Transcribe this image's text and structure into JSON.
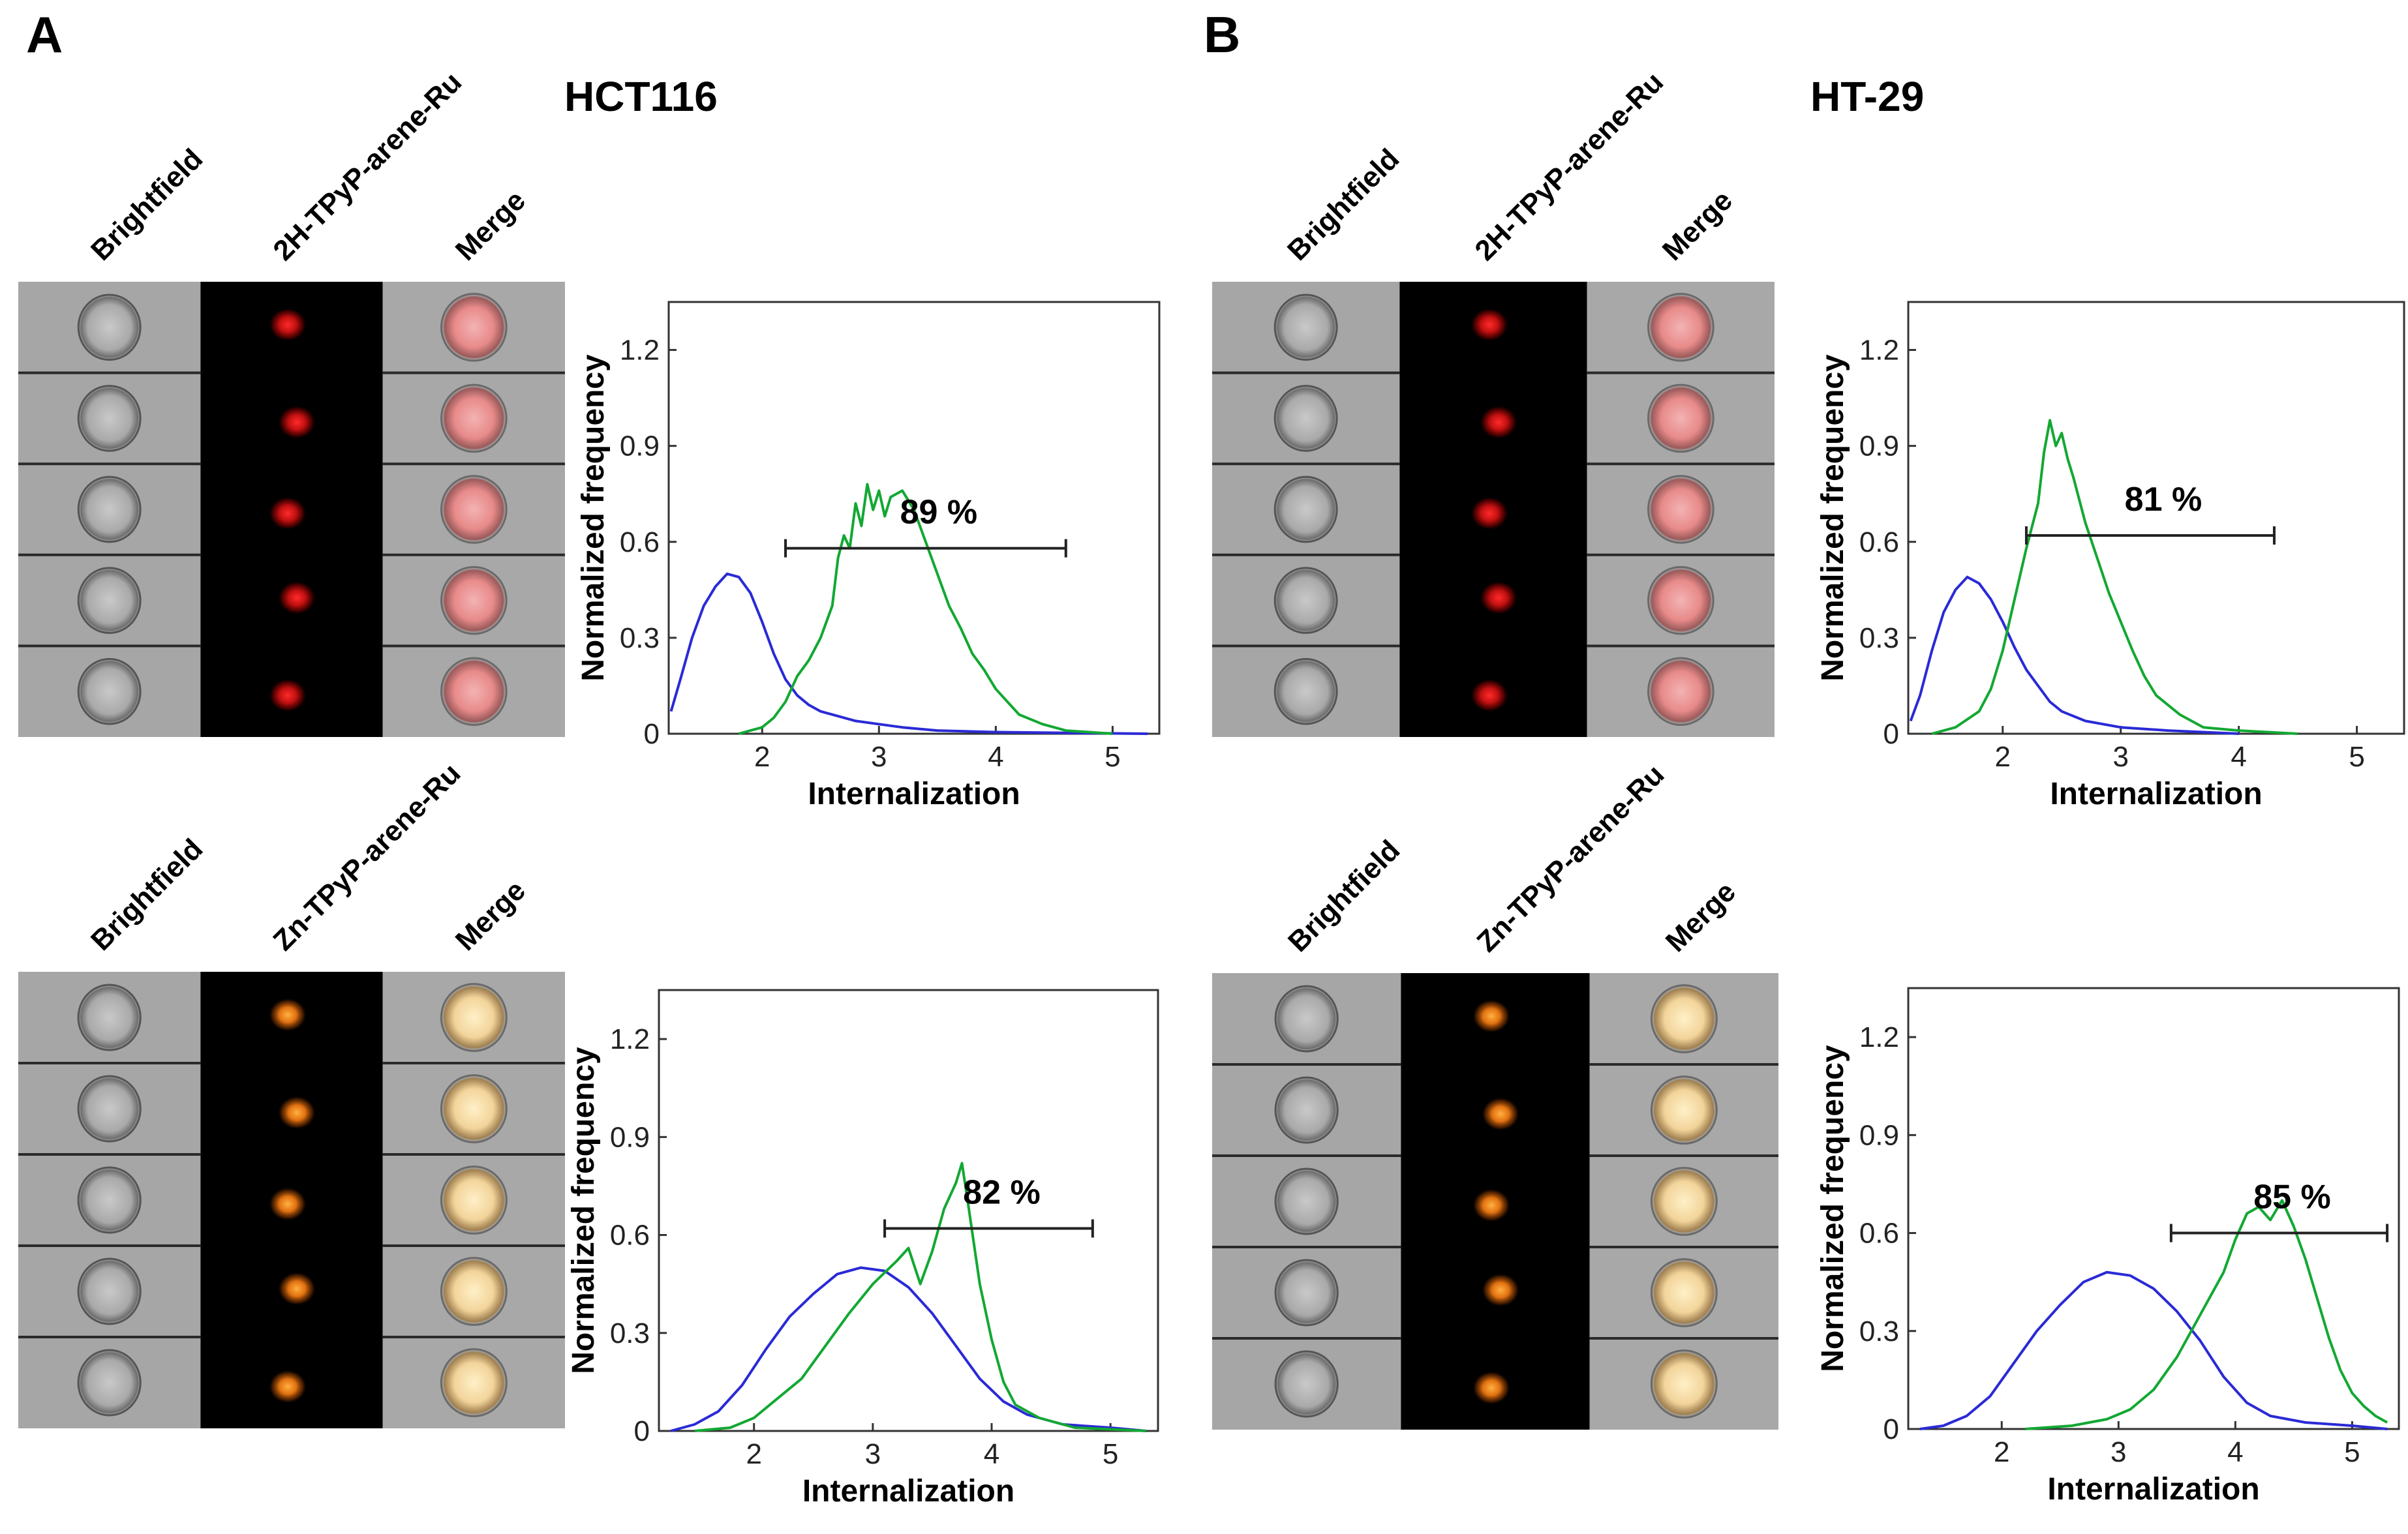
{
  "figure": {
    "panels": [
      {
        "letter": "A",
        "cell_line": "HCT116"
      },
      {
        "letter": "B",
        "cell_line": "HT-29"
      }
    ]
  },
  "image_strips": [
    {
      "panel": "A",
      "labels": [
        "Brightfield",
        "2H-TPyP-arene-Ru",
        "Merge"
      ],
      "fluor_color": "#e0141e",
      "rows": 5
    },
    {
      "panel": "A",
      "labels": [
        "Brightfield",
        "Zn-TPyP-arene-Ru",
        "Merge"
      ],
      "fluor_color": "#ff8c14",
      "rows": 5
    },
    {
      "panel": "B",
      "labels": [
        "Brightfield",
        "2H-TPyP-arene-Ru",
        "Merge"
      ],
      "fluor_color": "#e0141e",
      "rows": 5
    },
    {
      "panel": "B",
      "labels": [
        "Brightfield",
        "Zn-TPyP-arene-Ru",
        "Merge"
      ],
      "fluor_color": "#ff8c14",
      "rows": 5
    }
  ],
  "chart_data": [
    {
      "type": "line",
      "panel": "A",
      "compound": "2H-TPyP-arene-Ru",
      "xlabel": "Internalization",
      "ylabel": "Normalized frequency",
      "xlim": [
        1.2,
        5.4
      ],
      "ylim": [
        0,
        1.35
      ],
      "xticks": [
        2,
        3,
        4,
        5
      ],
      "yticks": [
        0,
        0.3,
        0.6,
        0.9,
        1.2
      ],
      "annotation": {
        "label": "89 %",
        "range": [
          2.2,
          4.6
        ],
        "y": 0.58
      },
      "series": [
        {
          "color": "#2a2ad6",
          "points": [
            [
              1.22,
              0.07
            ],
            [
              1.3,
              0.17
            ],
            [
              1.4,
              0.3
            ],
            [
              1.5,
              0.4
            ],
            [
              1.6,
              0.46
            ],
            [
              1.7,
              0.5
            ],
            [
              1.8,
              0.49
            ],
            [
              1.9,
              0.44
            ],
            [
              2.0,
              0.35
            ],
            [
              2.1,
              0.25
            ],
            [
              2.2,
              0.17
            ],
            [
              2.3,
              0.12
            ],
            [
              2.4,
              0.09
            ],
            [
              2.5,
              0.07
            ],
            [
              2.6,
              0.06
            ],
            [
              2.8,
              0.04
            ],
            [
              3.0,
              0.03
            ],
            [
              3.2,
              0.02
            ],
            [
              3.5,
              0.01
            ],
            [
              4.0,
              0.005
            ],
            [
              5.3,
              0.0
            ]
          ]
        },
        {
          "color": "#12a832",
          "points": [
            [
              1.8,
              0.0
            ],
            [
              2.0,
              0.02
            ],
            [
              2.1,
              0.05
            ],
            [
              2.2,
              0.1
            ],
            [
              2.3,
              0.18
            ],
            [
              2.4,
              0.23
            ],
            [
              2.5,
              0.3
            ],
            [
              2.6,
              0.4
            ],
            [
              2.65,
              0.55
            ],
            [
              2.7,
              0.62
            ],
            [
              2.75,
              0.58
            ],
            [
              2.8,
              0.72
            ],
            [
              2.85,
              0.65
            ],
            [
              2.9,
              0.78
            ],
            [
              2.95,
              0.7
            ],
            [
              3.0,
              0.76
            ],
            [
              3.05,
              0.68
            ],
            [
              3.1,
              0.74
            ],
            [
              3.2,
              0.76
            ],
            [
              3.3,
              0.7
            ],
            [
              3.4,
              0.6
            ],
            [
              3.5,
              0.5
            ],
            [
              3.6,
              0.4
            ],
            [
              3.7,
              0.33
            ],
            [
              3.8,
              0.25
            ],
            [
              3.9,
              0.2
            ],
            [
              4.0,
              0.14
            ],
            [
              4.1,
              0.1
            ],
            [
              4.2,
              0.06
            ],
            [
              4.4,
              0.03
            ],
            [
              4.6,
              0.01
            ],
            [
              5.0,
              0.0
            ]
          ]
        }
      ]
    },
    {
      "type": "line",
      "panel": "A",
      "compound": "Zn-TPyP-arene-Ru",
      "xlabel": "Internalization",
      "ylabel": "Normalized frequency",
      "xlim": [
        1.2,
        5.4
      ],
      "ylim": [
        0,
        1.35
      ],
      "xticks": [
        2,
        3,
        4,
        5
      ],
      "yticks": [
        0,
        0.3,
        0.6,
        0.9,
        1.2
      ],
      "annotation": {
        "label": "82 %",
        "range": [
          3.1,
          4.85
        ],
        "y": 0.62
      },
      "series": [
        {
          "color": "#2a2ad6",
          "points": [
            [
              1.3,
              0.0
            ],
            [
              1.5,
              0.02
            ],
            [
              1.7,
              0.06
            ],
            [
              1.9,
              0.14
            ],
            [
              2.1,
              0.25
            ],
            [
              2.3,
              0.35
            ],
            [
              2.5,
              0.42
            ],
            [
              2.7,
              0.48
            ],
            [
              2.9,
              0.5
            ],
            [
              3.1,
              0.49
            ],
            [
              3.3,
              0.44
            ],
            [
              3.5,
              0.36
            ],
            [
              3.7,
              0.26
            ],
            [
              3.9,
              0.16
            ],
            [
              4.1,
              0.09
            ],
            [
              4.3,
              0.05
            ],
            [
              4.6,
              0.02
            ],
            [
              5.0,
              0.01
            ],
            [
              5.3,
              0.0
            ]
          ]
        },
        {
          "color": "#12a832",
          "points": [
            [
              1.5,
              0.0
            ],
            [
              1.8,
              0.01
            ],
            [
              2.0,
              0.04
            ],
            [
              2.2,
              0.1
            ],
            [
              2.4,
              0.16
            ],
            [
              2.6,
              0.26
            ],
            [
              2.8,
              0.36
            ],
            [
              3.0,
              0.45
            ],
            [
              3.2,
              0.52
            ],
            [
              3.3,
              0.56
            ],
            [
              3.4,
              0.45
            ],
            [
              3.5,
              0.55
            ],
            [
              3.6,
              0.68
            ],
            [
              3.7,
              0.76
            ],
            [
              3.75,
              0.82
            ],
            [
              3.8,
              0.7
            ],
            [
              3.9,
              0.45
            ],
            [
              4.0,
              0.28
            ],
            [
              4.1,
              0.15
            ],
            [
              4.2,
              0.08
            ],
            [
              4.4,
              0.04
            ],
            [
              4.7,
              0.01
            ],
            [
              5.3,
              0.0
            ]
          ]
        }
      ]
    },
    {
      "type": "line",
      "panel": "B",
      "compound": "2H-TPyP-arene-Ru",
      "xlabel": "Internalization",
      "ylabel": "Normalized frequency",
      "xlim": [
        1.2,
        5.4
      ],
      "ylim": [
        0,
        1.35
      ],
      "xticks": [
        2,
        3,
        4,
        5
      ],
      "yticks": [
        0,
        0.3,
        0.6,
        0.9,
        1.2
      ],
      "annotation": {
        "label": "81 %",
        "range": [
          2.2,
          4.3
        ],
        "y": 0.62
      },
      "series": [
        {
          "color": "#2a2ad6",
          "points": [
            [
              1.22,
              0.04
            ],
            [
              1.3,
              0.12
            ],
            [
              1.4,
              0.26
            ],
            [
              1.5,
              0.38
            ],
            [
              1.6,
              0.45
            ],
            [
              1.7,
              0.49
            ],
            [
              1.8,
              0.47
            ],
            [
              1.9,
              0.42
            ],
            [
              2.0,
              0.35
            ],
            [
              2.1,
              0.27
            ],
            [
              2.2,
              0.2
            ],
            [
              2.3,
              0.15
            ],
            [
              2.4,
              0.1
            ],
            [
              2.5,
              0.07
            ],
            [
              2.7,
              0.04
            ],
            [
              3.0,
              0.02
            ],
            [
              3.4,
              0.01
            ],
            [
              4.0,
              0.0
            ]
          ]
        },
        {
          "color": "#12a832",
          "points": [
            [
              1.4,
              0.0
            ],
            [
              1.6,
              0.02
            ],
            [
              1.8,
              0.07
            ],
            [
              1.9,
              0.14
            ],
            [
              2.0,
              0.26
            ],
            [
              2.1,
              0.42
            ],
            [
              2.2,
              0.58
            ],
            [
              2.3,
              0.72
            ],
            [
              2.35,
              0.88
            ],
            [
              2.4,
              0.98
            ],
            [
              2.45,
              0.9
            ],
            [
              2.5,
              0.94
            ],
            [
              2.55,
              0.86
            ],
            [
              2.6,
              0.8
            ],
            [
              2.7,
              0.66
            ],
            [
              2.8,
              0.55
            ],
            [
              2.9,
              0.44
            ],
            [
              3.0,
              0.35
            ],
            [
              3.1,
              0.26
            ],
            [
              3.2,
              0.18
            ],
            [
              3.3,
              0.12
            ],
            [
              3.5,
              0.06
            ],
            [
              3.7,
              0.02
            ],
            [
              4.0,
              0.01
            ],
            [
              4.5,
              0.0
            ]
          ]
        }
      ]
    },
    {
      "type": "line",
      "panel": "B",
      "compound": "Zn-TPyP-arene-Ru",
      "xlabel": "Internalization",
      "ylabel": "Normalized frequency",
      "xlim": [
        1.2,
        5.4
      ],
      "ylim": [
        0,
        1.35
      ],
      "xticks": [
        2,
        3,
        4,
        5
      ],
      "yticks": [
        0,
        0.3,
        0.6,
        0.9,
        1.2
      ],
      "annotation": {
        "label": "85 %",
        "range": [
          3.45,
          5.3
        ],
        "y": 0.6
      },
      "series": [
        {
          "color": "#2a2ad6",
          "points": [
            [
              1.3,
              0.0
            ],
            [
              1.5,
              0.01
            ],
            [
              1.7,
              0.04
            ],
            [
              1.9,
              0.1
            ],
            [
              2.1,
              0.2
            ],
            [
              2.3,
              0.3
            ],
            [
              2.5,
              0.38
            ],
            [
              2.7,
              0.45
            ],
            [
              2.9,
              0.48
            ],
            [
              3.1,
              0.47
            ],
            [
              3.3,
              0.43
            ],
            [
              3.5,
              0.36
            ],
            [
              3.7,
              0.27
            ],
            [
              3.9,
              0.16
            ],
            [
              4.1,
              0.08
            ],
            [
              4.3,
              0.04
            ],
            [
              4.6,
              0.02
            ],
            [
              5.0,
              0.01
            ],
            [
              5.3,
              0.0
            ]
          ]
        },
        {
          "color": "#12a832",
          "points": [
            [
              2.2,
              0.0
            ],
            [
              2.6,
              0.01
            ],
            [
              2.9,
              0.03
            ],
            [
              3.1,
              0.06
            ],
            [
              3.3,
              0.12
            ],
            [
              3.5,
              0.22
            ],
            [
              3.7,
              0.35
            ],
            [
              3.9,
              0.48
            ],
            [
              4.0,
              0.58
            ],
            [
              4.1,
              0.66
            ],
            [
              4.2,
              0.68
            ],
            [
              4.3,
              0.64
            ],
            [
              4.4,
              0.7
            ],
            [
              4.5,
              0.62
            ],
            [
              4.6,
              0.52
            ],
            [
              4.7,
              0.4
            ],
            [
              4.8,
              0.28
            ],
            [
              4.9,
              0.18
            ],
            [
              5.0,
              0.11
            ],
            [
              5.1,
              0.07
            ],
            [
              5.2,
              0.04
            ],
            [
              5.3,
              0.02
            ]
          ]
        }
      ]
    }
  ]
}
